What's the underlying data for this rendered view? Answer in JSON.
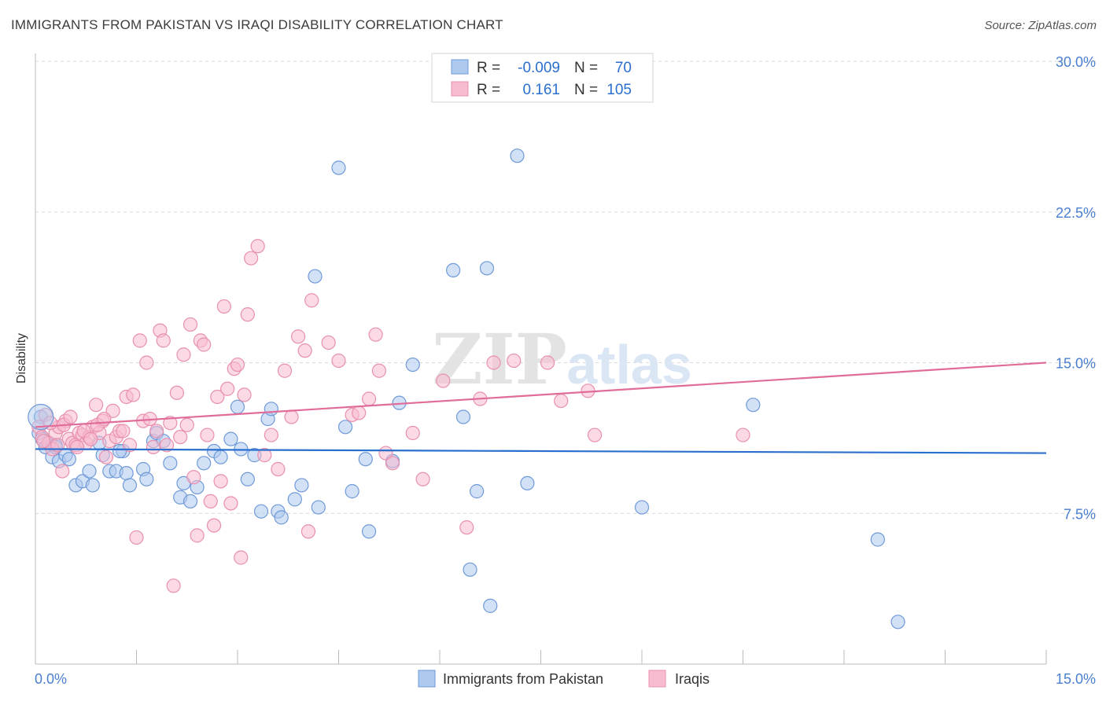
{
  "title": "IMMIGRANTS FROM PAKISTAN VS IRAQI DISABILITY CORRELATION CHART",
  "source": "Source: ZipAtlas.com",
  "watermark": {
    "zip": "ZIP",
    "atlas": "atlas"
  },
  "colors": {
    "blue_fill": "#aec9ee",
    "blue_stroke": "#6f9ad8",
    "blue_line": "#2a6fce",
    "pink_fill": "#f7bcd0",
    "pink_stroke": "#e890ad",
    "pink_line": "#e06c99",
    "value_text": "#2a6fce",
    "grid": "#d9d9d9",
    "axis_text": "#4a7fcf"
  },
  "legend_top": {
    "rows": [
      {
        "r_label": "R =",
        "r_value": "-0.009",
        "n_label": "N =",
        "n_value": "70",
        "series": "blue"
      },
      {
        "r_label": "R =",
        "r_value": "0.161",
        "n_label": "N =",
        "n_value": "105",
        "series": "pink"
      }
    ]
  },
  "chart_data": {
    "type": "scatter",
    "title": "IMMIGRANTS FROM PAKISTAN VS IRAQI DISABILITY CORRELATION CHART",
    "xlabel": "",
    "ylabel": "Disability",
    "xlim": [
      0,
      15
    ],
    "ylim": [
      0,
      30
    ],
    "x_tick_labels": [
      "0.0%",
      "15.0%"
    ],
    "y_tick_values": [
      7.5,
      15.0,
      22.5,
      30.0
    ],
    "y_tick_labels": [
      "7.5%",
      "15.0%",
      "22.5%",
      "30.0%"
    ],
    "grid": "horizontal dashed",
    "legend_placement": "bottom",
    "series": [
      {
        "name": "Immigrants from Pakistan",
        "color": "blue",
        "trend": [
          [
            0,
            10.7
          ],
          [
            15,
            10.5
          ]
        ],
        "points": [
          [
            0.05,
            11.5
          ],
          [
            0.1,
            11.2
          ],
          [
            0.15,
            10.8
          ],
          [
            0.2,
            11.0
          ],
          [
            0.25,
            10.3
          ],
          [
            0.3,
            10.9
          ],
          [
            0.35,
            10.1
          ],
          [
            0.45,
            10.4
          ],
          [
            0.5,
            10.2
          ],
          [
            0.6,
            8.9
          ],
          [
            0.7,
            9.1
          ],
          [
            0.8,
            9.6
          ],
          [
            0.85,
            8.9
          ],
          [
            0.95,
            11.0
          ],
          [
            1.0,
            10.4
          ],
          [
            1.1,
            9.6
          ],
          [
            1.2,
            9.6
          ],
          [
            1.3,
            10.6
          ],
          [
            1.35,
            9.5
          ],
          [
            1.4,
            8.9
          ],
          [
            1.6,
            9.7
          ],
          [
            1.65,
            9.2
          ],
          [
            1.75,
            11.1
          ],
          [
            1.8,
            11.5
          ],
          [
            1.9,
            11.1
          ],
          [
            2.0,
            10.0
          ],
          [
            2.15,
            8.3
          ],
          [
            2.2,
            9.0
          ],
          [
            2.3,
            8.1
          ],
          [
            2.5,
            10.0
          ],
          [
            2.65,
            10.6
          ],
          [
            2.75,
            10.3
          ],
          [
            2.9,
            11.2
          ],
          [
            3.0,
            12.8
          ],
          [
            3.05,
            10.7
          ],
          [
            3.15,
            9.2
          ],
          [
            3.25,
            10.4
          ],
          [
            3.35,
            7.6
          ],
          [
            3.45,
            12.2
          ],
          [
            3.5,
            12.7
          ],
          [
            3.6,
            7.6
          ],
          [
            3.65,
            7.3
          ],
          [
            3.85,
            8.2
          ],
          [
            3.95,
            8.9
          ],
          [
            4.15,
            19.3
          ],
          [
            4.2,
            7.8
          ],
          [
            4.5,
            24.7
          ],
          [
            4.6,
            11.8
          ],
          [
            4.7,
            8.6
          ],
          [
            4.9,
            10.2
          ],
          [
            4.95,
            6.6
          ],
          [
            5.3,
            10.1
          ],
          [
            5.4,
            13.0
          ],
          [
            5.6,
            14.9
          ],
          [
            6.2,
            19.6
          ],
          [
            6.35,
            12.3
          ],
          [
            6.45,
            4.7
          ],
          [
            6.55,
            8.6
          ],
          [
            6.7,
            19.7
          ],
          [
            6.75,
            2.9
          ],
          [
            7.15,
            25.3
          ],
          [
            7.3,
            9.0
          ],
          [
            9.0,
            7.8
          ],
          [
            10.65,
            12.9
          ],
          [
            12.5,
            6.2
          ],
          [
            12.8,
            2.1
          ],
          [
            0.08,
            12.3
          ],
          [
            0.3,
            10.8
          ],
          [
            1.25,
            10.6
          ],
          [
            2.4,
            8.8
          ]
        ]
      },
      {
        "name": "Iraqis",
        "color": "pink",
        "trend": [
          [
            0,
            11.8
          ],
          [
            15,
            15.0
          ]
        ],
        "points": [
          [
            0.05,
            11.8
          ],
          [
            0.1,
            11.3
          ],
          [
            0.15,
            12.4
          ],
          [
            0.2,
            11.0
          ],
          [
            0.25,
            10.7
          ],
          [
            0.3,
            11.5
          ],
          [
            0.35,
            11.8
          ],
          [
            0.4,
            9.6
          ],
          [
            0.45,
            12.1
          ],
          [
            0.5,
            11.2
          ],
          [
            0.55,
            11.0
          ],
          [
            0.6,
            10.9
          ],
          [
            0.65,
            11.5
          ],
          [
            0.7,
            11.4
          ],
          [
            0.75,
            11.0
          ],
          [
            0.8,
            11.3
          ],
          [
            0.85,
            11.8
          ],
          [
            0.9,
            12.9
          ],
          [
            0.95,
            11.5
          ],
          [
            1.0,
            12.1
          ],
          [
            1.05,
            10.3
          ],
          [
            1.1,
            11.1
          ],
          [
            1.15,
            12.6
          ],
          [
            1.2,
            11.3
          ],
          [
            1.25,
            11.6
          ],
          [
            1.3,
            11.6
          ],
          [
            1.35,
            13.3
          ],
          [
            1.4,
            10.9
          ],
          [
            1.45,
            13.4
          ],
          [
            1.5,
            6.3
          ],
          [
            1.55,
            16.1
          ],
          [
            1.6,
            12.1
          ],
          [
            1.65,
            15.0
          ],
          [
            1.7,
            12.2
          ],
          [
            1.75,
            10.8
          ],
          [
            1.8,
            11.6
          ],
          [
            1.85,
            16.6
          ],
          [
            1.9,
            16.1
          ],
          [
            1.95,
            10.9
          ],
          [
            2.0,
            12.0
          ],
          [
            2.05,
            3.9
          ],
          [
            2.1,
            13.5
          ],
          [
            2.15,
            11.3
          ],
          [
            2.2,
            15.4
          ],
          [
            2.25,
            11.9
          ],
          [
            2.3,
            16.9
          ],
          [
            2.35,
            9.3
          ],
          [
            2.4,
            6.4
          ],
          [
            2.45,
            16.1
          ],
          [
            2.5,
            15.9
          ],
          [
            2.55,
            11.4
          ],
          [
            2.6,
            8.1
          ],
          [
            2.65,
            6.9
          ],
          [
            2.7,
            13.3
          ],
          [
            2.75,
            9.1
          ],
          [
            2.8,
            17.8
          ],
          [
            2.85,
            13.7
          ],
          [
            2.9,
            8.0
          ],
          [
            2.95,
            14.7
          ],
          [
            3.0,
            14.9
          ],
          [
            3.05,
            5.3
          ],
          [
            3.1,
            13.4
          ],
          [
            3.15,
            17.4
          ],
          [
            3.2,
            20.2
          ],
          [
            3.3,
            20.8
          ],
          [
            3.4,
            10.4
          ],
          [
            3.5,
            11.4
          ],
          [
            3.6,
            9.7
          ],
          [
            3.7,
            14.6
          ],
          [
            3.8,
            12.3
          ],
          [
            3.9,
            16.3
          ],
          [
            4.0,
            15.6
          ],
          [
            4.05,
            6.6
          ],
          [
            4.1,
            18.1
          ],
          [
            4.35,
            16.0
          ],
          [
            4.5,
            15.1
          ],
          [
            4.7,
            12.4
          ],
          [
            4.8,
            12.5
          ],
          [
            4.95,
            13.2
          ],
          [
            5.05,
            16.4
          ],
          [
            5.1,
            14.6
          ],
          [
            5.2,
            10.5
          ],
          [
            5.3,
            10.0
          ],
          [
            5.6,
            11.5
          ],
          [
            5.75,
            9.2
          ],
          [
            6.05,
            14.1
          ],
          [
            6.4,
            6.8
          ],
          [
            6.6,
            13.2
          ],
          [
            6.8,
            15.0
          ],
          [
            7.1,
            15.1
          ],
          [
            7.6,
            15.0
          ],
          [
            7.8,
            13.1
          ],
          [
            8.2,
            13.6
          ],
          [
            8.3,
            11.4
          ],
          [
            10.5,
            11.4
          ],
          [
            0.12,
            11.1
          ],
          [
            0.22,
            12.0
          ],
          [
            0.33,
            10.9
          ],
          [
            0.42,
            11.9
          ],
          [
            0.52,
            12.3
          ],
          [
            0.62,
            10.8
          ],
          [
            0.72,
            11.6
          ],
          [
            0.82,
            11.2
          ],
          [
            0.92,
            11.9
          ],
          [
            1.02,
            12.2
          ]
        ]
      }
    ]
  },
  "legend_bottom": [
    {
      "label": "Immigrants from Pakistan",
      "series": "blue"
    },
    {
      "label": "Iraqis",
      "series": "pink"
    }
  ]
}
